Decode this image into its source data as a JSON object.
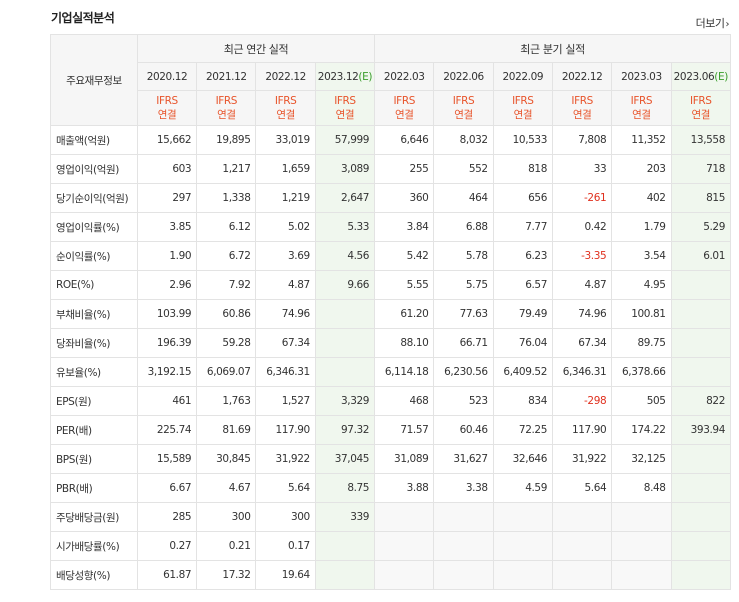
{
  "section_title": "기업실적분석",
  "more_link": "더보기",
  "table": {
    "row_header_label": "주요재무정보",
    "annual_group": "최근 연간 실적",
    "quarter_group": "최근 분기 실적",
    "periods": [
      {
        "date": "2020.12",
        "est": false
      },
      {
        "date": "2021.12",
        "est": false
      },
      {
        "date": "2022.12",
        "est": false
      },
      {
        "date": "2023.12",
        "est": true
      },
      {
        "date": "2022.03",
        "est": false
      },
      {
        "date": "2022.06",
        "est": false
      },
      {
        "date": "2022.09",
        "est": false
      },
      {
        "date": "2022.12",
        "est": false
      },
      {
        "date": "2023.03",
        "est": false
      },
      {
        "date": "2023.06",
        "est": true
      }
    ],
    "est_label": "(E)",
    "ifrs_line1": "IFRS",
    "ifrs_line2": "연결",
    "rows": [
      {
        "label": "매출액(억원)",
        "sep": false,
        "values": [
          "15,662",
          "19,895",
          "33,019",
          "57,999",
          "6,646",
          "8,032",
          "10,533",
          "7,808",
          "11,352",
          "13,558"
        ]
      },
      {
        "label": "영업이익(억원)",
        "sep": false,
        "values": [
          "603",
          "1,217",
          "1,659",
          "3,089",
          "255",
          "552",
          "818",
          "33",
          "203",
          "718"
        ]
      },
      {
        "label": "당기순이익(억원)",
        "sep": false,
        "values": [
          "297",
          "1,338",
          "1,219",
          "2,647",
          "360",
          "464",
          "656",
          "-261",
          "402",
          "815"
        ]
      },
      {
        "label": "영업이익률(%)",
        "sep": true,
        "values": [
          "3.85",
          "6.12",
          "5.02",
          "5.33",
          "3.84",
          "6.88",
          "7.77",
          "0.42",
          "1.79",
          "5.29"
        ]
      },
      {
        "label": "순이익률(%)",
        "sep": false,
        "values": [
          "1.90",
          "6.72",
          "3.69",
          "4.56",
          "5.42",
          "5.78",
          "6.23",
          "-3.35",
          "3.54",
          "6.01"
        ]
      },
      {
        "label": "ROE(%)",
        "sep": false,
        "values": [
          "2.96",
          "7.92",
          "4.87",
          "9.66",
          "5.55",
          "5.75",
          "6.57",
          "4.87",
          "4.95",
          ""
        ]
      },
      {
        "label": "부채비율(%)",
        "sep": true,
        "values": [
          "103.99",
          "60.86",
          "74.96",
          "",
          "61.20",
          "77.63",
          "79.49",
          "74.96",
          "100.81",
          ""
        ]
      },
      {
        "label": "당좌비율(%)",
        "sep": false,
        "values": [
          "196.39",
          "59.28",
          "67.34",
          "",
          "88.10",
          "66.71",
          "76.04",
          "67.34",
          "89.75",
          ""
        ]
      },
      {
        "label": "유보율(%)",
        "sep": false,
        "values": [
          "3,192.15",
          "6,069.07",
          "6,346.31",
          "",
          "6,114.18",
          "6,230.56",
          "6,409.52",
          "6,346.31",
          "6,378.66",
          ""
        ]
      },
      {
        "label": "EPS(원)",
        "sep": true,
        "values": [
          "461",
          "1,763",
          "1,527",
          "3,329",
          "468",
          "523",
          "834",
          "-298",
          "505",
          "822"
        ]
      },
      {
        "label": "PER(배)",
        "sep": false,
        "values": [
          "225.74",
          "81.69",
          "117.90",
          "97.32",
          "71.57",
          "60.46",
          "72.25",
          "117.90",
          "174.22",
          "393.94"
        ]
      },
      {
        "label": "BPS(원)",
        "sep": false,
        "values": [
          "15,589",
          "30,845",
          "31,922",
          "37,045",
          "31,089",
          "31,627",
          "32,646",
          "31,922",
          "32,125",
          ""
        ]
      },
      {
        "label": "PBR(배)",
        "sep": false,
        "values": [
          "6.67",
          "4.67",
          "5.64",
          "8.75",
          "3.88",
          "3.38",
          "4.59",
          "5.64",
          "8.48",
          ""
        ]
      },
      {
        "label": "주당배당금(원)",
        "sep": true,
        "values": [
          "285",
          "300",
          "300",
          "339",
          "",
          "",
          "",
          "",
          "",
          ""
        ]
      },
      {
        "label": "시가배당률(%)",
        "sep": false,
        "values": [
          "0.27",
          "0.21",
          "0.17",
          "",
          "",
          "",
          "",
          "",
          "",
          ""
        ]
      },
      {
        "label": "배당성향(%)",
        "sep": false,
        "values": [
          "61.87",
          "17.32",
          "19.64",
          "",
          "",
          "",
          "",
          "",
          "",
          ""
        ]
      }
    ]
  }
}
